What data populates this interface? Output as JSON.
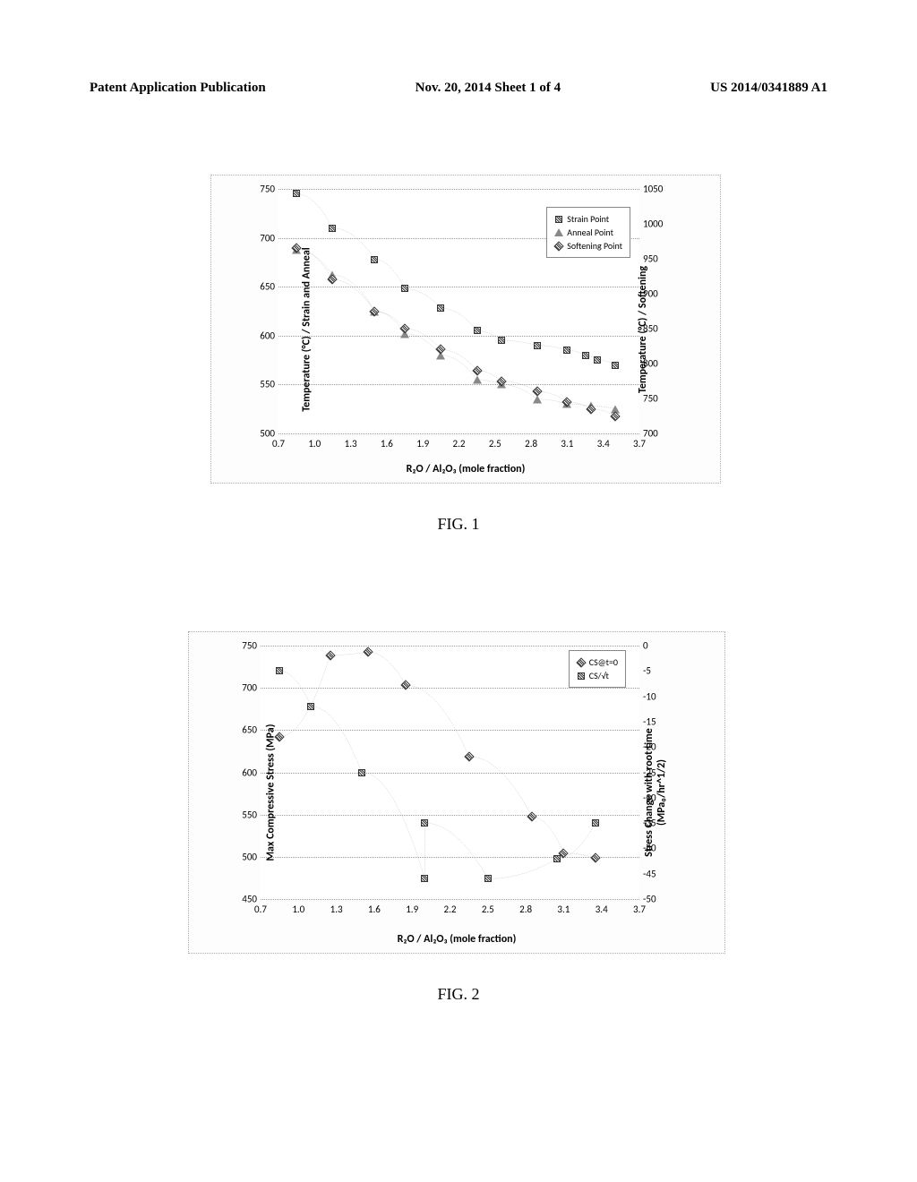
{
  "header": {
    "left": "Patent Application Publication",
    "center": "Nov. 20, 2014  Sheet 1 of 4",
    "right": "US 2014/0341889 A1"
  },
  "figure1": {
    "caption": "FIG. 1",
    "type": "scatter",
    "x_label": "R₂O / Al₂O₃ (mole fraction)",
    "y_label_left": "Temperature (°C) / Strain and Anneal",
    "y_label_right": "Temperature (°C) / Softening",
    "x_ticks": [
      "0.7",
      "1.0",
      "1.3",
      "1.6",
      "1.9",
      "2.2",
      "2.5",
      "2.8",
      "3.1",
      "3.4",
      "3.7"
    ],
    "y_ticks_left": [
      "500",
      "550",
      "600",
      "650",
      "700",
      "750"
    ],
    "y_ticks_right": [
      "700",
      "750",
      "800",
      "850",
      "900",
      "950",
      "1000",
      "1050"
    ],
    "xlim": [
      0.7,
      3.7
    ],
    "ylim_left": [
      500,
      750
    ],
    "ylim_right": [
      700,
      1050
    ],
    "legend": [
      {
        "marker": "square",
        "label": "Strain Point"
      },
      {
        "marker": "triangle",
        "label": "Anneal Point"
      },
      {
        "marker": "diamond",
        "label": "Softening Point"
      }
    ],
    "series_strain": [
      [
        0.85,
        745
      ],
      [
        1.15,
        710
      ],
      [
        1.5,
        678
      ],
      [
        1.75,
        648
      ],
      [
        2.05,
        628
      ],
      [
        2.35,
        605
      ],
      [
        2.55,
        595
      ],
      [
        2.85,
        590
      ],
      [
        3.1,
        585
      ],
      [
        3.25,
        580
      ],
      [
        3.35,
        575
      ],
      [
        3.5,
        570
      ]
    ],
    "series_anneal": [
      [
        0.85,
        688
      ],
      [
        1.15,
        662
      ],
      [
        1.5,
        625
      ],
      [
        1.75,
        602
      ],
      [
        2.05,
        580
      ],
      [
        2.35,
        555
      ],
      [
        2.55,
        550
      ],
      [
        2.85,
        535
      ],
      [
        3.1,
        530
      ],
      [
        3.3,
        528
      ],
      [
        3.5,
        525
      ]
    ],
    "series_softening": [
      [
        0.85,
        965
      ],
      [
        1.15,
        920
      ],
      [
        1.5,
        875
      ],
      [
        1.75,
        850
      ],
      [
        2.05,
        820
      ],
      [
        2.35,
        790
      ],
      [
        2.55,
        775
      ],
      [
        2.85,
        760
      ],
      [
        3.1,
        745
      ],
      [
        3.3,
        735
      ],
      [
        3.5,
        725
      ]
    ]
  },
  "figure2": {
    "caption": "FIG. 2",
    "type": "scatter",
    "x_label": "R₂O / Al₂O₃ (mole fraction)",
    "y_label_left": "Max Compressive Stress (MPa)",
    "y_label_right_line1": "Stress Change with root time",
    "y_label_right_line2": "(MPa₀/hr^1/2)",
    "x_ticks": [
      "0.7",
      "1.0",
      "1.3",
      "1.6",
      "1.9",
      "2.2",
      "2.5",
      "2.8",
      "3.1",
      "3.4",
      "3.7"
    ],
    "y_ticks_left": [
      "450",
      "500",
      "550",
      "600",
      "650",
      "700",
      "750"
    ],
    "y_ticks_right": [
      "0",
      "-5",
      "-10",
      "-15",
      "-20",
      "-25",
      "-30",
      "-35",
      "-40",
      "-45",
      "-50"
    ],
    "xlim": [
      0.7,
      3.7
    ],
    "ylim_left": [
      450,
      770
    ],
    "ylim_right": [
      -50,
      0
    ],
    "legend": [
      {
        "marker": "diamond",
        "label": "CS@t=0"
      },
      {
        "marker": "square",
        "label": "CS/√t"
      }
    ],
    "series_cs": [
      [
        0.85,
        655
      ],
      [
        1.25,
        758
      ],
      [
        1.55,
        762
      ],
      [
        1.85,
        720
      ],
      [
        2.35,
        630
      ],
      [
        2.85,
        554
      ],
      [
        3.1,
        508
      ],
      [
        3.35,
        502
      ]
    ],
    "series_csrt": [
      [
        0.85,
        -5
      ],
      [
        1.1,
        -12
      ],
      [
        1.5,
        -25
      ],
      [
        2.0,
        -46
      ],
      [
        2.0,
        -35
      ],
      [
        2.5,
        -46
      ],
      [
        3.05,
        -42
      ],
      [
        3.35,
        -35
      ]
    ]
  },
  "colors": {
    "background": "#ffffff",
    "grid": "#999999",
    "text": "#000000",
    "curve": "#888888"
  }
}
